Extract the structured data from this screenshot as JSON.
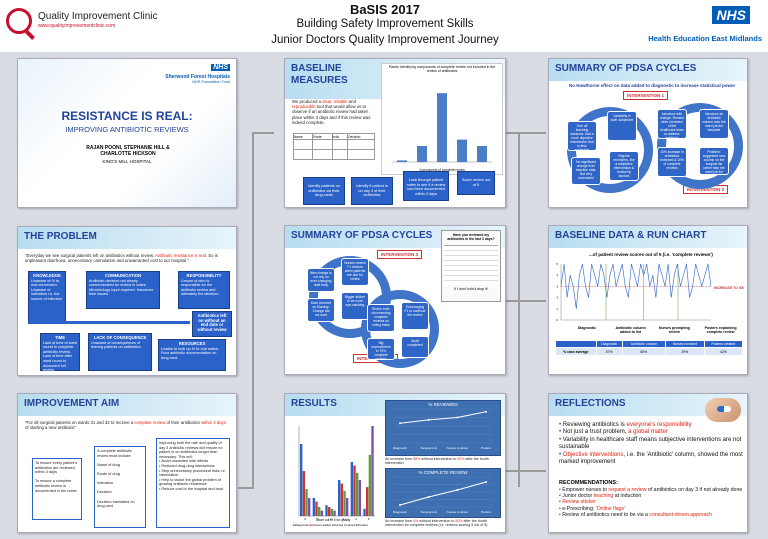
{
  "header": {
    "org": "Quality Improvement Clinic",
    "site": "www.qualityimprovementclinic.com",
    "title": "BaSIS 2017",
    "subtitle1": "Building Safety Improvement Skills",
    "subtitle2": "Junior Doctors Quality Improvement Journey",
    "nhs": "NHS",
    "hee": "Health Education East Midlands"
  },
  "title_panel": {
    "nhs": "NHS",
    "trust": "Sherwood Forest Hospitals",
    "trust_sub": "NHS Foundation Trust",
    "title": "RESISTANCE IS REAL:",
    "subtitle": "IMPROVING ANTIBIOTIC REVIEWS",
    "authors": "RAJAN POONI, STEPHANIE HILL & CHARLOTTE HICKSON",
    "hospital": "KING'S MILL HOSPITAL"
  },
  "problem": {
    "heading": "THE PROBLEM",
    "quote_a": "\"Everyday we see surgical patients left on antibiotics without review. ",
    "quote_red": "Antibiotic resistance is real.",
    "quote_b": " So is unpleasant diarrhoea, unnecessary cannulation and unwarranted cost to our hospital.\"",
    "boxes": [
      {
        "h": "KNOWLEDGE",
        "t": "Unaware of IV to oral conversion. Unaware of indication i.e. the source of infection"
      },
      {
        "h": "COMMUNICATION",
        "t": "Antibiotic decision not clearly communicated for review in notes. Microbiology input required. Handover time issues."
      },
      {
        "h": "RESPONSIBILITY",
        "t": "Unsure of who is responsible for the antibiotic review and ultimately the decision."
      },
      {
        "h": "Antibiotics left on without an end date or without review",
        "t": ""
      },
      {
        "h": "TIME",
        "t": "Lack of time of ward round to complete antibiotic review. Lack of time after ward round to document full review."
      },
      {
        "h": "LACK OF CONSEQUENCE",
        "t": "Unaware of consequences of leaving patients on antibiotics."
      },
      {
        "h": "RESOURCES",
        "t": "Unable to look up IV to oral switch. Poor antibiotic documentation on drug card."
      }
    ]
  },
  "aim": {
    "heading": "IMPROVEMENT AIM",
    "text_a": "\"For all surgical patients on wards 31 and 32 to receive a ",
    "text_red": "complete review",
    "text_b": " of their antibiotics ",
    "text_red2": "within 3 days",
    "text_c": " of starting a new antibiotic\"",
    "left": [
      "To ensure every patient's antibiotics are reviewed within 3 days",
      "To ensure a complete antibiotic review is documented in the notes"
    ],
    "mid": [
      "A complete antibiotic review must include:",
      "Name of drug",
      "Route of drug",
      "Indication",
      "Decision",
      "Decision translated on drug card"
    ],
    "right": [
      "Improving both the rate and quality of day 3 antibiotic reviews will ensure no patient is on antibiotics longer than necessary. This will:",
      "Avoid unwanted side effects",
      "Reduced drug-drug interactions",
      "Stop unnecessary procedural risks i.e. cannulation",
      "Help to tackle the global problem of growing antibiotic resistance",
      "Reduce cost to the hospital and trust"
    ]
  },
  "baseline": {
    "heading": "BASELINE MEASURES",
    "text_a": "We produced a ",
    "clear": "clear",
    "text_b": ", ",
    "reliable": "reliable",
    "text_c": " and ",
    "repro": "reproducible",
    "text_d": " tool that would allow us to observe if an antibiotic review had taken place within 3 days and if this review was indeed complete.",
    "chart_title": "Pareto identifying components of complete review not included in the review of antibiotics",
    "chart_axis": "Components of complete review",
    "table_head": [
      "Name",
      "Route",
      "Indic",
      "Decision"
    ],
    "steps": [
      "Identify patients on antibiotics via their drug cards",
      "Identify if patient is on day 3 of their antibiotics",
      "Look through patient notes to see if a review had been documented within 3 days",
      "Score review out of 5"
    ]
  },
  "pdsa1": {
    "heading": "SUMMARY OF PDSA CYCLES",
    "int3": "INTERVENTION 3",
    "int4": "INTERVENTION 4",
    "segs": [
      "New change to not rely on ever-changing staff body",
      "Nurses remind F1 doctors when patients are due for review",
      "Bigger sticker to be more eye-catching",
      "Audit completed",
      "Data received on Monday: Change did not work",
      "Sticker bold: documenting complete reviews on rolling basis",
      "Encouraging F1 to continue the review",
      "Big improvement in 79% complete reviews"
    ],
    "card_title": "Have you reviewed my antibiotics in the last 3 days?",
    "card_note": "If I don't hold it drop it!"
  },
  "results": {
    "heading": "RESULTS",
    "bar_title": "Score out of 5 for quality",
    "reviewed_title": "% REVIEWED",
    "reviewed_note_a": "An increase from ",
    "reviewed_58": "58%",
    "reviewed_note_b": " without intervention to ",
    "reviewed_92": "92%",
    "reviewed_note_c": " after the fourth intervention",
    "complete_title": "% COMPLETE REVIEW",
    "complete_note_a": "An increase from ",
    "complete_4": "4%",
    "complete_note_b": " without intervention to ",
    "complete_50": "50%",
    "complete_note_c": " after the fourth intervention for complete reviews (i.e. reviews scoring 5 out of 5)",
    "legend": [
      "Diagnostic",
      "Colours added",
      "Nurses involved",
      "Posters"
    ],
    "xcats": [
      "Diagnostic",
      "Surgical List",
      "Nurses involved",
      "Posters"
    ]
  },
  "pdsa2": {
    "heading": "SUMMARY OF PDSA CYCLES",
    "hawthorne": "No Hawthorne effect on data added to diagnostic to increase statistical power",
    "int1": "INTERVENTION 1",
    "int2": "INTERVENTION 2",
    "segs": [
      "Introduce with change. Remind other members of the healthcare team to address antibiotic reviews",
      "Introduce an 'Antibiotic' column onto the ward job list template",
      "Problem: suggested new column on the surgical list rather than the ward job list",
      "10% increase in antibiotics reviewed & 10% of complete reviews",
      "Regular reminders, like a subjective intervention & review by doctors",
      "No significant change from baseline data. Not very successful",
      "One off teaching sessions. Add a more objective intervention that is less subjective",
      "Variability in staff, subjective"
    ]
  },
  "run": {
    "heading": "BASELINE DATA & RUN CHART",
    "sub": "...of patient review scores out of 5 (i.e. 'complete reviews')",
    "phase_labels": [
      "Diagnostic",
      "Antibiotic column added to list",
      "Nurses prompting review",
      "Posters explaining complete review"
    ],
    "table_head": [
      "",
      "Diagnostic",
      "'Antibiotic' column",
      "Nurses involved",
      "Posters created"
    ],
    "table_row": [
      "% case average",
      "57%",
      "65%",
      "29%",
      "42%"
    ],
    "note": "INCREASE TO 5/5"
  },
  "reflections": {
    "heading": "REFLECTIONS",
    "items": [
      {
        "a": "Reviewing antibiotics is ",
        "r": "everyone's responsibility",
        "b": ""
      },
      {
        "a": "Not just a trust problem, ",
        "r": "a global matter",
        "b": ""
      },
      {
        "a": "Variability in healthcare staff means subjective interventions are not sustainable",
        "r": "",
        "b": ""
      },
      {
        "a": "",
        "r": "Objective interventions",
        "b": ", i.e. the 'Antibiotic' column, showed the most marked improvement"
      }
    ],
    "rec_title": "RECOMMENDATIONS:",
    "recs": [
      {
        "a": "Empower nurses to ",
        "r": "request a review",
        "b": " of antibiotics on day 3 if not already done"
      },
      {
        "a": "Junior doctor ",
        "r": "teaching",
        "b": " at induction"
      },
      {
        "a": "",
        "r": "Review sticker",
        "b": ""
      },
      {
        "a": "e-Prescribing: ",
        "r": "'Online flags'",
        "b": ""
      },
      {
        "a": "Review of antibiotics need to be via a ",
        "r": "consultant-driven approach",
        "b": ""
      }
    ]
  },
  "chart_data": [
    {
      "type": "bar",
      "title": "Pareto identifying components of complete review not included in the review of antibiotics",
      "categories": [
        "Name",
        "Route",
        "Indication",
        "Decision",
        "Drug card"
      ],
      "values": [
        2,
        20,
        86,
        28,
        20
      ],
      "ylim": [
        0,
        100
      ]
    },
    {
      "type": "line",
      "title": "% REVIEWED",
      "categories": [
        "Diagnostic",
        "Surgical List",
        "Nurses involved",
        "Posters"
      ],
      "values": [
        58,
        68,
        75,
        92
      ],
      "ylim": [
        0,
        100
      ]
    },
    {
      "type": "line",
      "title": "% COMPLETE REVIEW",
      "categories": [
        "Diagnostic",
        "Surgical List",
        "Nurses involved",
        "Posters"
      ],
      "values": [
        4,
        20,
        34,
        50
      ],
      "ylim": [
        0,
        60
      ]
    },
    {
      "type": "bar",
      "title": "Score out of 5 for quality",
      "categories": [
        "0",
        "1",
        "2",
        "3",
        "4",
        "5"
      ],
      "series": [
        {
          "name": "Diagnostic",
          "values": [
            40,
            10,
            6,
            20,
            30,
            4
          ]
        },
        {
          "name": "Colours added",
          "values": [
            25,
            8,
            5,
            18,
            28,
            16
          ]
        },
        {
          "name": "Nurses involved",
          "values": [
            15,
            5,
            4,
            14,
            24,
            34
          ]
        },
        {
          "name": "Posters",
          "values": [
            10,
            3,
            3,
            10,
            20,
            50
          ]
        }
      ],
      "ylim": [
        0,
        50
      ]
    },
    {
      "type": "line",
      "title": "BASELINE DATA & RUN CHART",
      "values": [
        3,
        5,
        2,
        4,
        3,
        1,
        4,
        5,
        3,
        2,
        5,
        4,
        3,
        5,
        4,
        2,
        4,
        5,
        3,
        4,
        5,
        3,
        2,
        5,
        4,
        3,
        5,
        4,
        5,
        3,
        4,
        2,
        5,
        4,
        3,
        5,
        2,
        4,
        5,
        3,
        4,
        5,
        2,
        3,
        5,
        4,
        3,
        4,
        5,
        3
      ],
      "ylim": [
        0,
        5
      ]
    }
  ]
}
